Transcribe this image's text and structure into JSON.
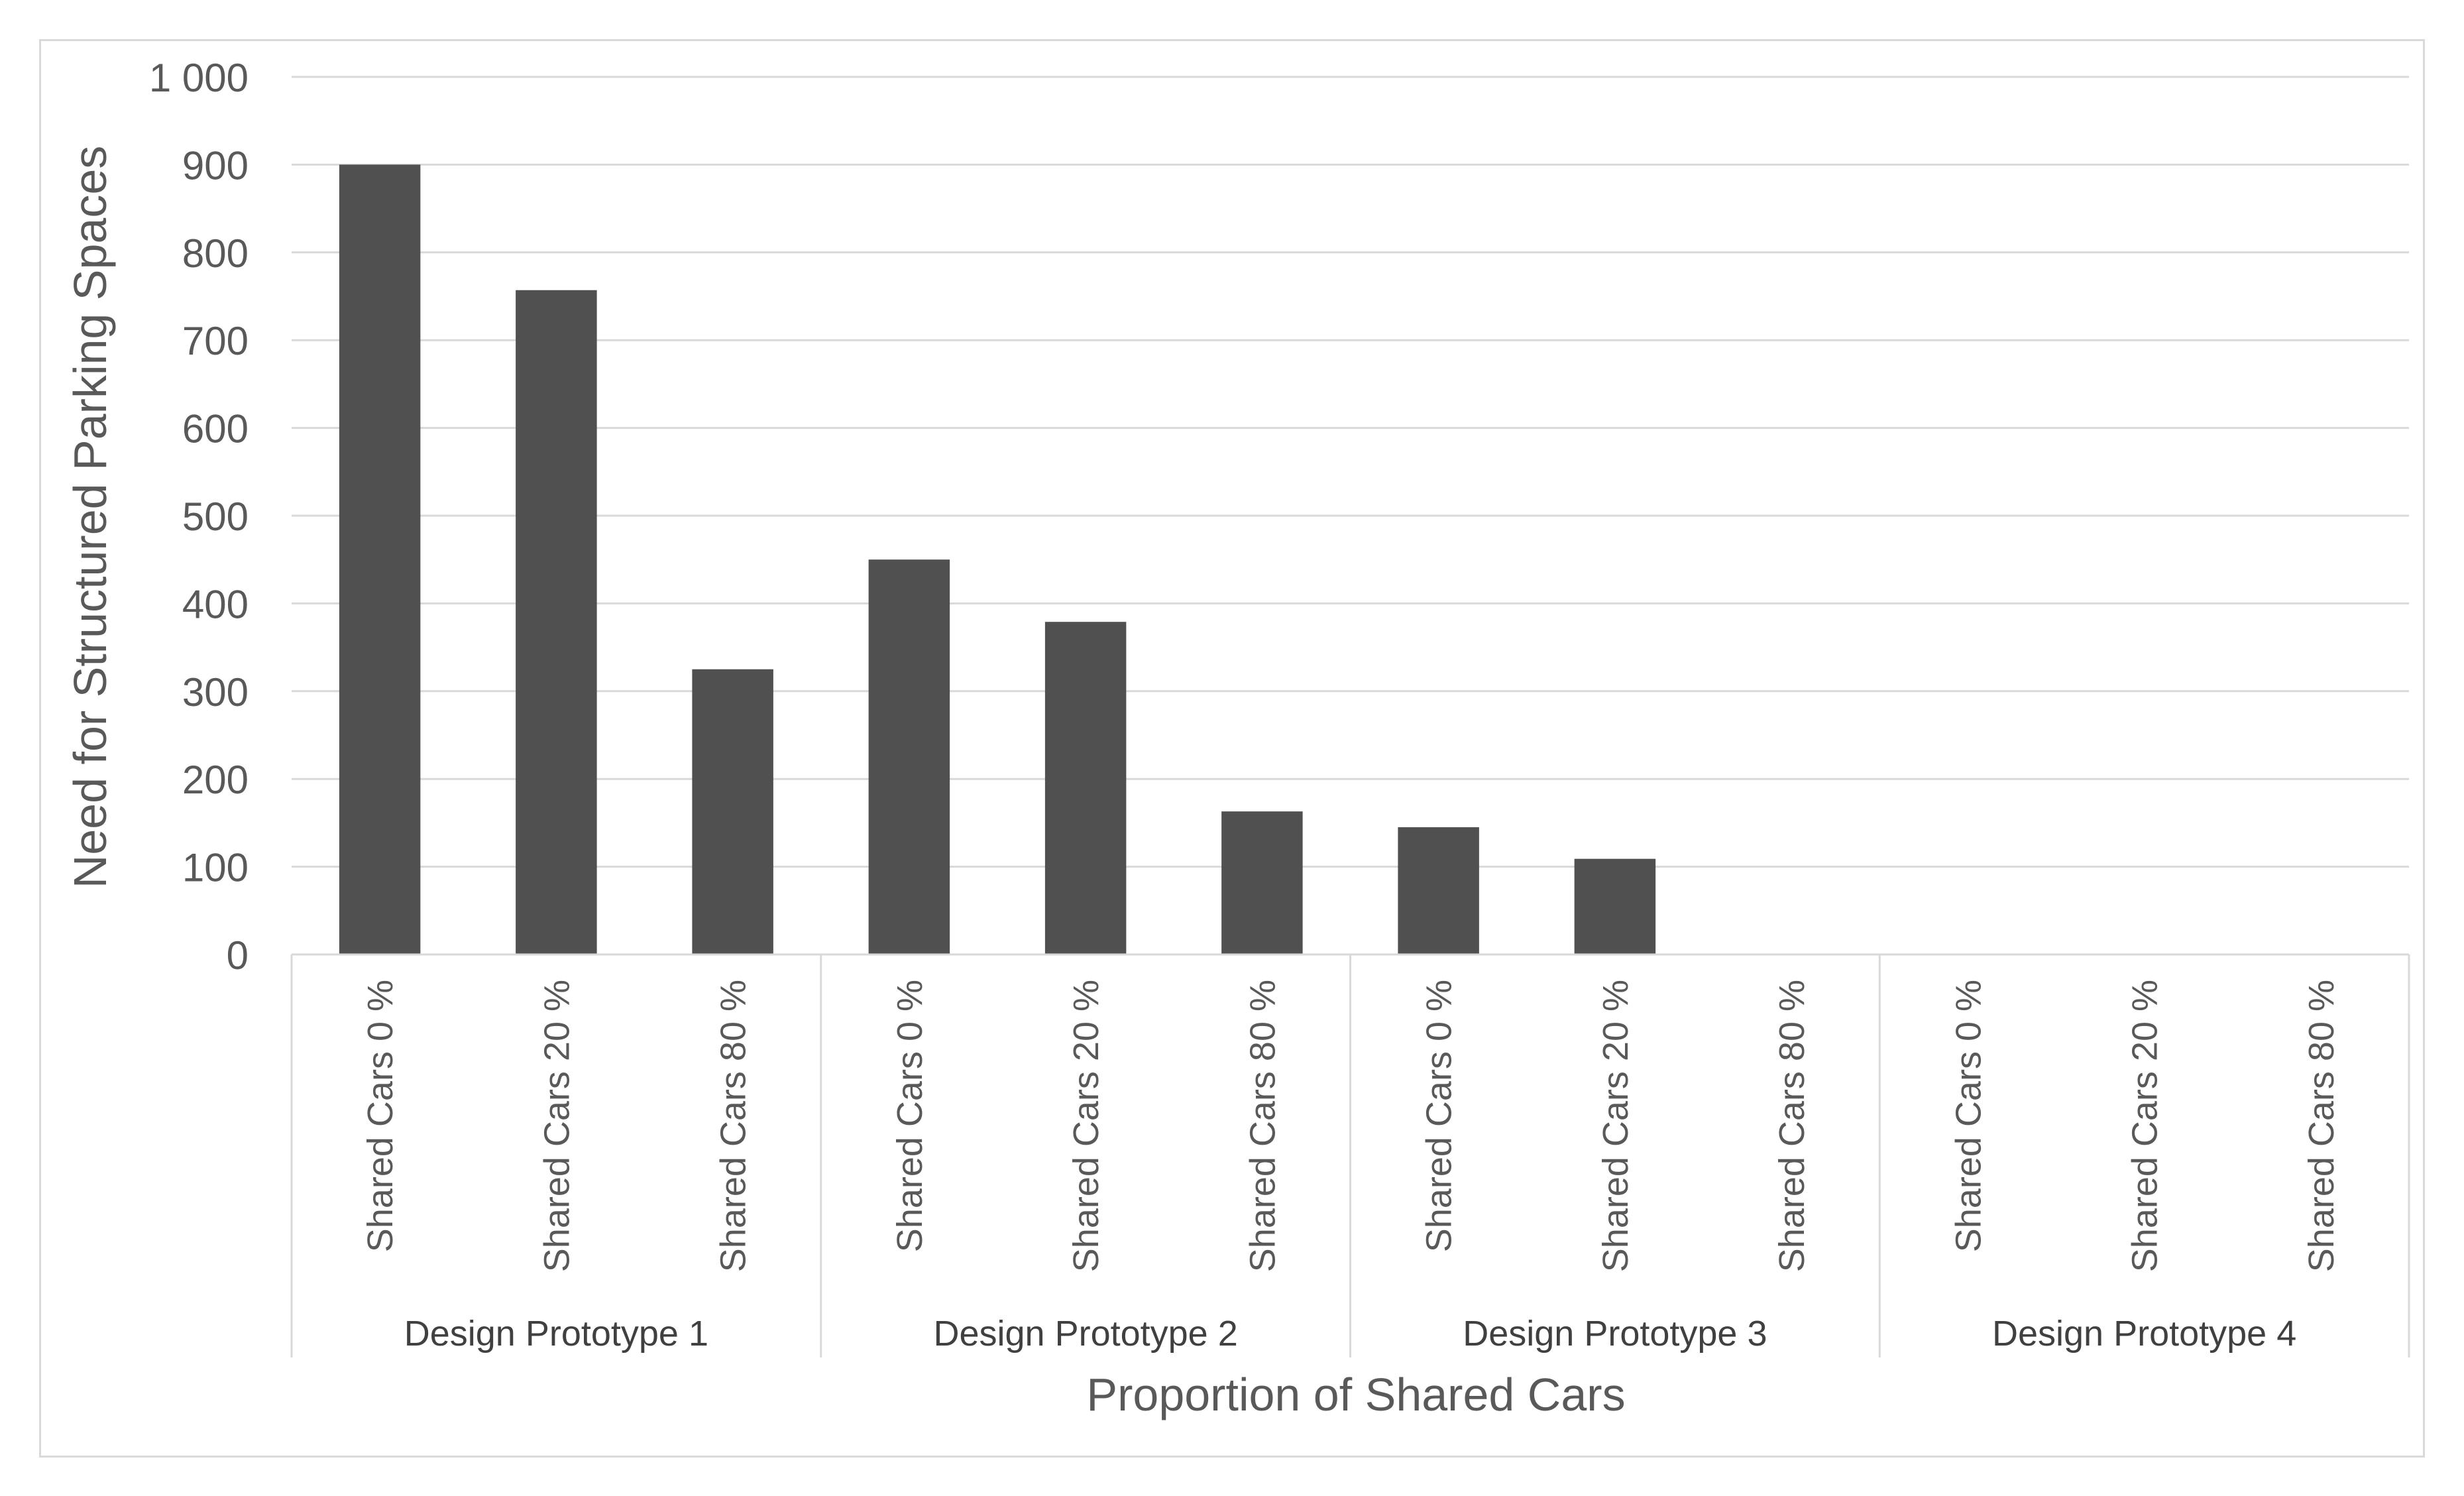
{
  "chart_data": {
    "type": "bar",
    "title": "",
    "xlabel": "Proportion of Shared Cars",
    "ylabel": "Need for Structured Parking Spaces",
    "ylim": [
      0,
      1000
    ],
    "yticks": [
      0,
      100,
      200,
      300,
      400,
      500,
      600,
      700,
      800,
      900,
      1000
    ],
    "ytick_labels": [
      "0",
      "100",
      "200",
      "300",
      "400",
      "500",
      "600",
      "700",
      "800",
      "900",
      "1 000"
    ],
    "grid": true,
    "legend": "none",
    "groups": [
      {
        "label": "Design Prototype 1",
        "categories": [
          "Shared Cars 0 %",
          "Shared Cars 20 %",
          "Shared Cars 80 %"
        ],
        "values": [
          900,
          757,
          325
        ]
      },
      {
        "label": "Design Prototype 2",
        "categories": [
          "Shared Cars 0 %",
          "Shared Cars 20 %",
          "Shared Cars 80 %"
        ],
        "values": [
          450,
          379,
          163
        ]
      },
      {
        "label": "Design Prototype 3",
        "categories": [
          "Shared Cars 0 %",
          "Shared Cars 20 %",
          "Shared Cars 80 %"
        ],
        "values": [
          145,
          109,
          0
        ]
      },
      {
        "label": "Design Prototype 4",
        "categories": [
          "Shared Cars 0 %",
          "Shared Cars 20 %",
          "Shared Cars 80 %"
        ],
        "values": [
          0,
          0,
          0
        ]
      }
    ],
    "colors": {
      "bar": "#505050",
      "grid": "#d9d9d9",
      "axis_line": "#d9d9d9",
      "text": "#595959"
    }
  }
}
